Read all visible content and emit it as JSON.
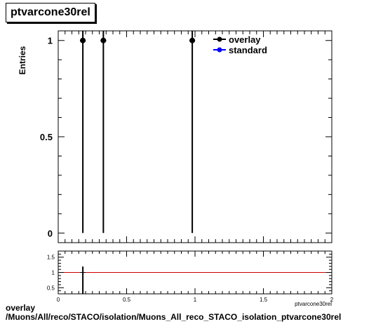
{
  "chart_data": [
    {
      "type": "line",
      "title": "ptvarcone30rel",
      "ylabel": "Entries",
      "xlim": [
        0,
        2
      ],
      "ylim": [
        -0.05,
        1.05
      ],
      "yticks": [
        {
          "v": 0,
          "label": "0"
        },
        {
          "v": 0.5,
          "label": "0.5"
        },
        {
          "v": 1,
          "label": "1"
        }
      ],
      "legend_placement": "top-right",
      "series": [
        {
          "name": "overlay",
          "color": "#000000",
          "marker": "filled-circle",
          "x": [
            0.18,
            0.33,
            0.98
          ],
          "values": [
            1,
            1,
            1
          ]
        },
        {
          "name": "standard",
          "color": "#0000ff",
          "marker": "filled-circle",
          "x": [],
          "values": []
        }
      ]
    },
    {
      "type": "line",
      "xlabel": "ptvarcone30rel",
      "xlim": [
        0,
        2
      ],
      "ylim": [
        0.3,
        1.7
      ],
      "xticks": [
        {
          "v": 0,
          "label": "0"
        },
        {
          "v": 0.5,
          "label": "0.5"
        },
        {
          "v": 1,
          "label": "1"
        },
        {
          "v": 1.5,
          "label": "1.5"
        },
        {
          "v": 2,
          "label": "2"
        }
      ],
      "yticks": [
        {
          "v": 0.5,
          "label": "0.5"
        },
        {
          "v": 1,
          "label": "1"
        },
        {
          "v": 1.5,
          "label": "1.5"
        }
      ],
      "reference_line": {
        "y": 1,
        "color": "#cc0000"
      },
      "ratio_points": {
        "x": [
          0.18
        ],
        "values": [
          1
        ]
      }
    }
  ],
  "caption": {
    "line1": "overlay",
    "line2": "/Muons/All/reco/STACO/isolation/Muons_All_reco_STACO_isolation_ptvarcone30rel"
  }
}
